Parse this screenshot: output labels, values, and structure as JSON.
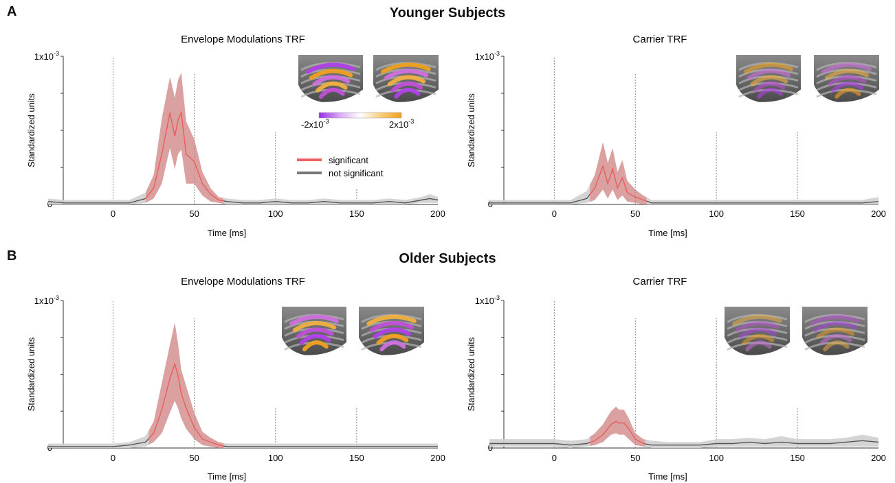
{
  "panels": {
    "a_letter": "A",
    "b_letter": "B",
    "a_title": "Younger Subjects",
    "b_title": "Older Subjects"
  },
  "legend": {
    "significant": "significant",
    "not_significant": "not significant",
    "colorbar_min": "-2x10",
    "colorbar_max": "2x10",
    "colorbar_exp": "-3",
    "colorbar_colors": [
      "#9b2ee8",
      "#d9a8f5",
      "#ffffff",
      "#f7cf7a",
      "#f0a020"
    ]
  },
  "colors": {
    "significant": "#e85c5c",
    "significant_band": "#cf8080",
    "not_significant": "#555555",
    "not_significant_band": "#cfcfcf"
  },
  "chart_data": [
    {
      "type": "line",
      "title": "Envelope Modulations TRF",
      "xlabel": "Time [ms]",
      "ylabel": "Standardized units",
      "ytick_top": "1x10",
      "ytick_exp": "-3",
      "ytick_bottom": "0",
      "xlim": [
        -40,
        200
      ],
      "ylim": [
        0,
        0.001
      ],
      "xticks": [
        0,
        50,
        100,
        150,
        200
      ],
      "vlines": [
        {
          "x": 0,
          "top": 1.0
        },
        {
          "x": 50,
          "top": 0.88
        },
        {
          "x": 100,
          "top": 0.49
        },
        {
          "x": 150,
          "top": 0.11
        }
      ],
      "significant_range": [
        20,
        68
      ],
      "x": [
        -40,
        -30,
        -20,
        -10,
        0,
        10,
        20,
        25,
        30,
        35,
        38,
        40,
        42,
        45,
        50,
        55,
        60,
        65,
        70,
        80,
        90,
        100,
        110,
        120,
        130,
        140,
        150,
        160,
        170,
        180,
        190,
        195,
        200
      ],
      "y": [
        2e-05,
        1e-05,
        1e-05,
        1e-05,
        1e-05,
        1e-05,
        4e-05,
        0.00011,
        0.00034,
        0.00062,
        0.00046,
        0.00057,
        0.00062,
        0.00034,
        0.00029,
        0.00014,
        7e-05,
        3e-05,
        2e-05,
        1e-05,
        1e-05,
        2e-05,
        1e-05,
        1e-05,
        2e-05,
        1e-05,
        1e-05,
        1e-05,
        2e-05,
        1e-05,
        3e-05,
        4e-05,
        3e-05
      ],
      "upper": [
        4e-05,
        3e-05,
        3e-05,
        3e-05,
        3e-05,
        3e-05,
        8e-05,
        0.0002,
        0.00058,
        0.00086,
        0.00072,
        0.00084,
        0.00089,
        0.00056,
        0.00044,
        0.00022,
        0.00011,
        5e-05,
        4e-05,
        3e-05,
        3e-05,
        4e-05,
        3e-05,
        3e-05,
        4e-05,
        3e-05,
        3e-05,
        3e-05,
        4e-05,
        3e-05,
        5e-05,
        7e-05,
        5e-05
      ],
      "lower": [
        0.0,
        0.0,
        0.0,
        0.0,
        0.0,
        0.0,
        1e-05,
        4e-05,
        0.00014,
        0.00038,
        0.00024,
        0.00034,
        0.00037,
        0.00014,
        0.00014,
        6e-05,
        2e-05,
        1e-05,
        0.0,
        0.0,
        0.0,
        0.0,
        0.0,
        0.0,
        0.0,
        0.0,
        0.0,
        0.0,
        0.0,
        0.0,
        1e-05,
        1e-05,
        1e-05
      ]
    },
    {
      "type": "line",
      "title": "Carrier TRF",
      "xlabel": "Time [ms]",
      "ylabel": "Standardized units",
      "ytick_top": "1x10",
      "ytick_exp": "-3",
      "ytick_bottom": "0",
      "xlim": [
        -40,
        200
      ],
      "ylim": [
        0,
        0.001
      ],
      "xticks": [
        0,
        50,
        100,
        150,
        200
      ],
      "vlines": [
        {
          "x": 0,
          "top": 1.0
        },
        {
          "x": 50,
          "top": 0.88
        },
        {
          "x": 100,
          "top": 0.49
        },
        {
          "x": 150,
          "top": 0.49
        }
      ],
      "significant_range": [
        22,
        57
      ],
      "x": [
        -40,
        -30,
        -20,
        -10,
        0,
        10,
        20,
        25,
        30,
        33,
        36,
        39,
        42,
        45,
        50,
        55,
        60,
        70,
        80,
        90,
        100,
        110,
        120,
        130,
        140,
        150,
        160,
        170,
        180,
        190,
        200
      ],
      "y": [
        1e-05,
        1e-05,
        1e-05,
        1e-05,
        1e-05,
        1e-05,
        4e-05,
        0.00011,
        0.00026,
        0.00014,
        0.00024,
        0.00011,
        0.00018,
        8e-05,
        5e-05,
        3e-05,
        1e-05,
        1e-05,
        1e-05,
        1e-05,
        1e-05,
        1e-05,
        1e-05,
        1e-05,
        1e-05,
        1e-05,
        1e-05,
        1e-05,
        1e-05,
        1e-05,
        2e-05
      ],
      "upper": [
        3e-05,
        3e-05,
        3e-05,
        3e-05,
        3e-05,
        3e-05,
        9e-05,
        0.0002,
        0.00042,
        0.00028,
        0.00038,
        0.00022,
        0.0003,
        0.00016,
        0.0001,
        6e-05,
        3e-05,
        3e-05,
        3e-05,
        3e-05,
        3e-05,
        3e-05,
        3e-05,
        3e-05,
        3e-05,
        3e-05,
        3e-05,
        3e-05,
        3e-05,
        3e-05,
        5e-05
      ],
      "lower": [
        0.0,
        0.0,
        0.0,
        0.0,
        0.0,
        0.0,
        1e-05,
        3e-05,
        0.0001,
        4e-05,
        0.0001,
        3e-05,
        6e-05,
        2e-05,
        1e-05,
        0.0,
        0.0,
        0.0,
        0.0,
        0.0,
        0.0,
        0.0,
        0.0,
        0.0,
        0.0,
        0.0,
        0.0,
        0.0,
        0.0,
        0.0,
        0.0
      ]
    },
    {
      "type": "line",
      "title": "Envelope Modulations TRF",
      "xlabel": "Time [ms]",
      "ylabel": "Standardized units",
      "ytick_top": "1x10",
      "ytick_exp": "-3",
      "ytick_bottom": "0",
      "xlim": [
        -40,
        200
      ],
      "ylim": [
        0,
        0.001
      ],
      "xticks": [
        0,
        50,
        100,
        150,
        200
      ],
      "vlines": [
        {
          "x": 0,
          "top": 1.0
        },
        {
          "x": 50,
          "top": 0.88
        },
        {
          "x": 100,
          "top": 0.27
        },
        {
          "x": 150,
          "top": 0.27
        }
      ],
      "significant_range": [
        22,
        68
      ],
      "x": [
        -40,
        -30,
        -20,
        -10,
        0,
        10,
        20,
        25,
        30,
        35,
        38,
        40,
        42,
        45,
        50,
        55,
        60,
        65,
        70,
        80,
        90,
        100,
        110,
        120,
        130,
        140,
        150,
        160,
        170,
        180,
        190,
        200
      ],
      "y": [
        1e-05,
        1e-05,
        1e-05,
        1e-05,
        1e-05,
        2e-05,
        4e-05,
        0.0001,
        0.00026,
        0.00047,
        0.00057,
        0.00049,
        0.00037,
        0.00027,
        0.00014,
        6e-05,
        4e-05,
        2e-05,
        1e-05,
        1e-05,
        1e-05,
        1e-05,
        1e-05,
        1e-05,
        1e-05,
        1e-05,
        1e-05,
        1e-05,
        1e-05,
        1e-05,
        1e-05,
        1e-05
      ],
      "upper": [
        3e-05,
        3e-05,
        3e-05,
        3e-05,
        3e-05,
        4e-05,
        8e-05,
        0.00018,
        0.00044,
        0.0007,
        0.00085,
        0.00071,
        0.00053,
        0.00042,
        0.00024,
        0.00011,
        7e-05,
        4e-05,
        3e-05,
        3e-05,
        3e-05,
        3e-05,
        3e-05,
        3e-05,
        3e-05,
        3e-05,
        3e-05,
        3e-05,
        3e-05,
        3e-05,
        3e-05,
        3e-05
      ],
      "lower": [
        0.0,
        0.0,
        0.0,
        0.0,
        0.0,
        0.0,
        1e-05,
        4e-05,
        0.0001,
        0.00024,
        0.00032,
        0.00027,
        0.0002,
        0.00013,
        6e-05,
        2e-05,
        1e-05,
        0.0,
        0.0,
        0.0,
        0.0,
        0.0,
        0.0,
        0.0,
        0.0,
        0.0,
        0.0,
        0.0,
        0.0,
        0.0,
        0.0,
        0.0
      ]
    },
    {
      "type": "line",
      "title": "Carrier TRF",
      "xlabel": "Time [ms]",
      "ylabel": "Standardized units",
      "ytick_top": "1x10",
      "ytick_exp": "-3",
      "ytick_bottom": "0",
      "xlim": [
        -40,
        200
      ],
      "ylim": [
        0,
        0.001
      ],
      "xticks": [
        0,
        50,
        100,
        150,
        200
      ],
      "vlines": [
        {
          "x": 0,
          "top": 1.0
        },
        {
          "x": 50,
          "top": 0.88
        },
        {
          "x": 100,
          "top": 0.88
        },
        {
          "x": 150,
          "top": 0.27
        }
      ],
      "significant_range": [
        22,
        56
      ],
      "x": [
        -40,
        -30,
        -20,
        -10,
        0,
        10,
        20,
        25,
        30,
        35,
        38,
        40,
        43,
        46,
        50,
        55,
        60,
        70,
        80,
        90,
        100,
        110,
        120,
        130,
        140,
        150,
        160,
        170,
        180,
        190,
        200
      ],
      "y": [
        3e-05,
        3e-05,
        3e-05,
        3e-05,
        3e-05,
        2e-05,
        3e-05,
        5e-05,
        9e-05,
        0.00016,
        0.00018,
        0.00017,
        0.00017,
        0.00013,
        6e-05,
        3e-05,
        2e-05,
        2e-05,
        2e-05,
        2e-05,
        3e-05,
        3e-05,
        4e-05,
        3e-05,
        4e-05,
        3e-05,
        3e-05,
        3e-05,
        4e-05,
        5e-05,
        4e-05
      ],
      "upper": [
        6e-05,
        6e-05,
        6e-05,
        6e-05,
        6e-05,
        5e-05,
        6e-05,
        0.0001,
        0.00016,
        0.00025,
        0.00028,
        0.00026,
        0.00026,
        0.0002,
        0.0001,
        6e-05,
        5e-05,
        4e-05,
        4e-05,
        4e-05,
        6e-05,
        6e-05,
        7e-05,
        6e-05,
        8e-05,
        6e-05,
        6e-05,
        6e-05,
        7e-05,
        9e-05,
        7e-05
      ],
      "lower": [
        1e-05,
        1e-05,
        1e-05,
        1e-05,
        1e-05,
        0.0,
        1e-05,
        2e-05,
        4e-05,
        9e-05,
        0.0001,
        9e-05,
        9e-05,
        6e-05,
        2e-05,
        1e-05,
        0.0,
        0.0,
        0.0,
        0.0,
        1e-05,
        1e-05,
        1e-05,
        1e-05,
        1e-05,
        1e-05,
        1e-05,
        1e-05,
        1e-05,
        1e-05,
        1e-05
      ]
    }
  ]
}
